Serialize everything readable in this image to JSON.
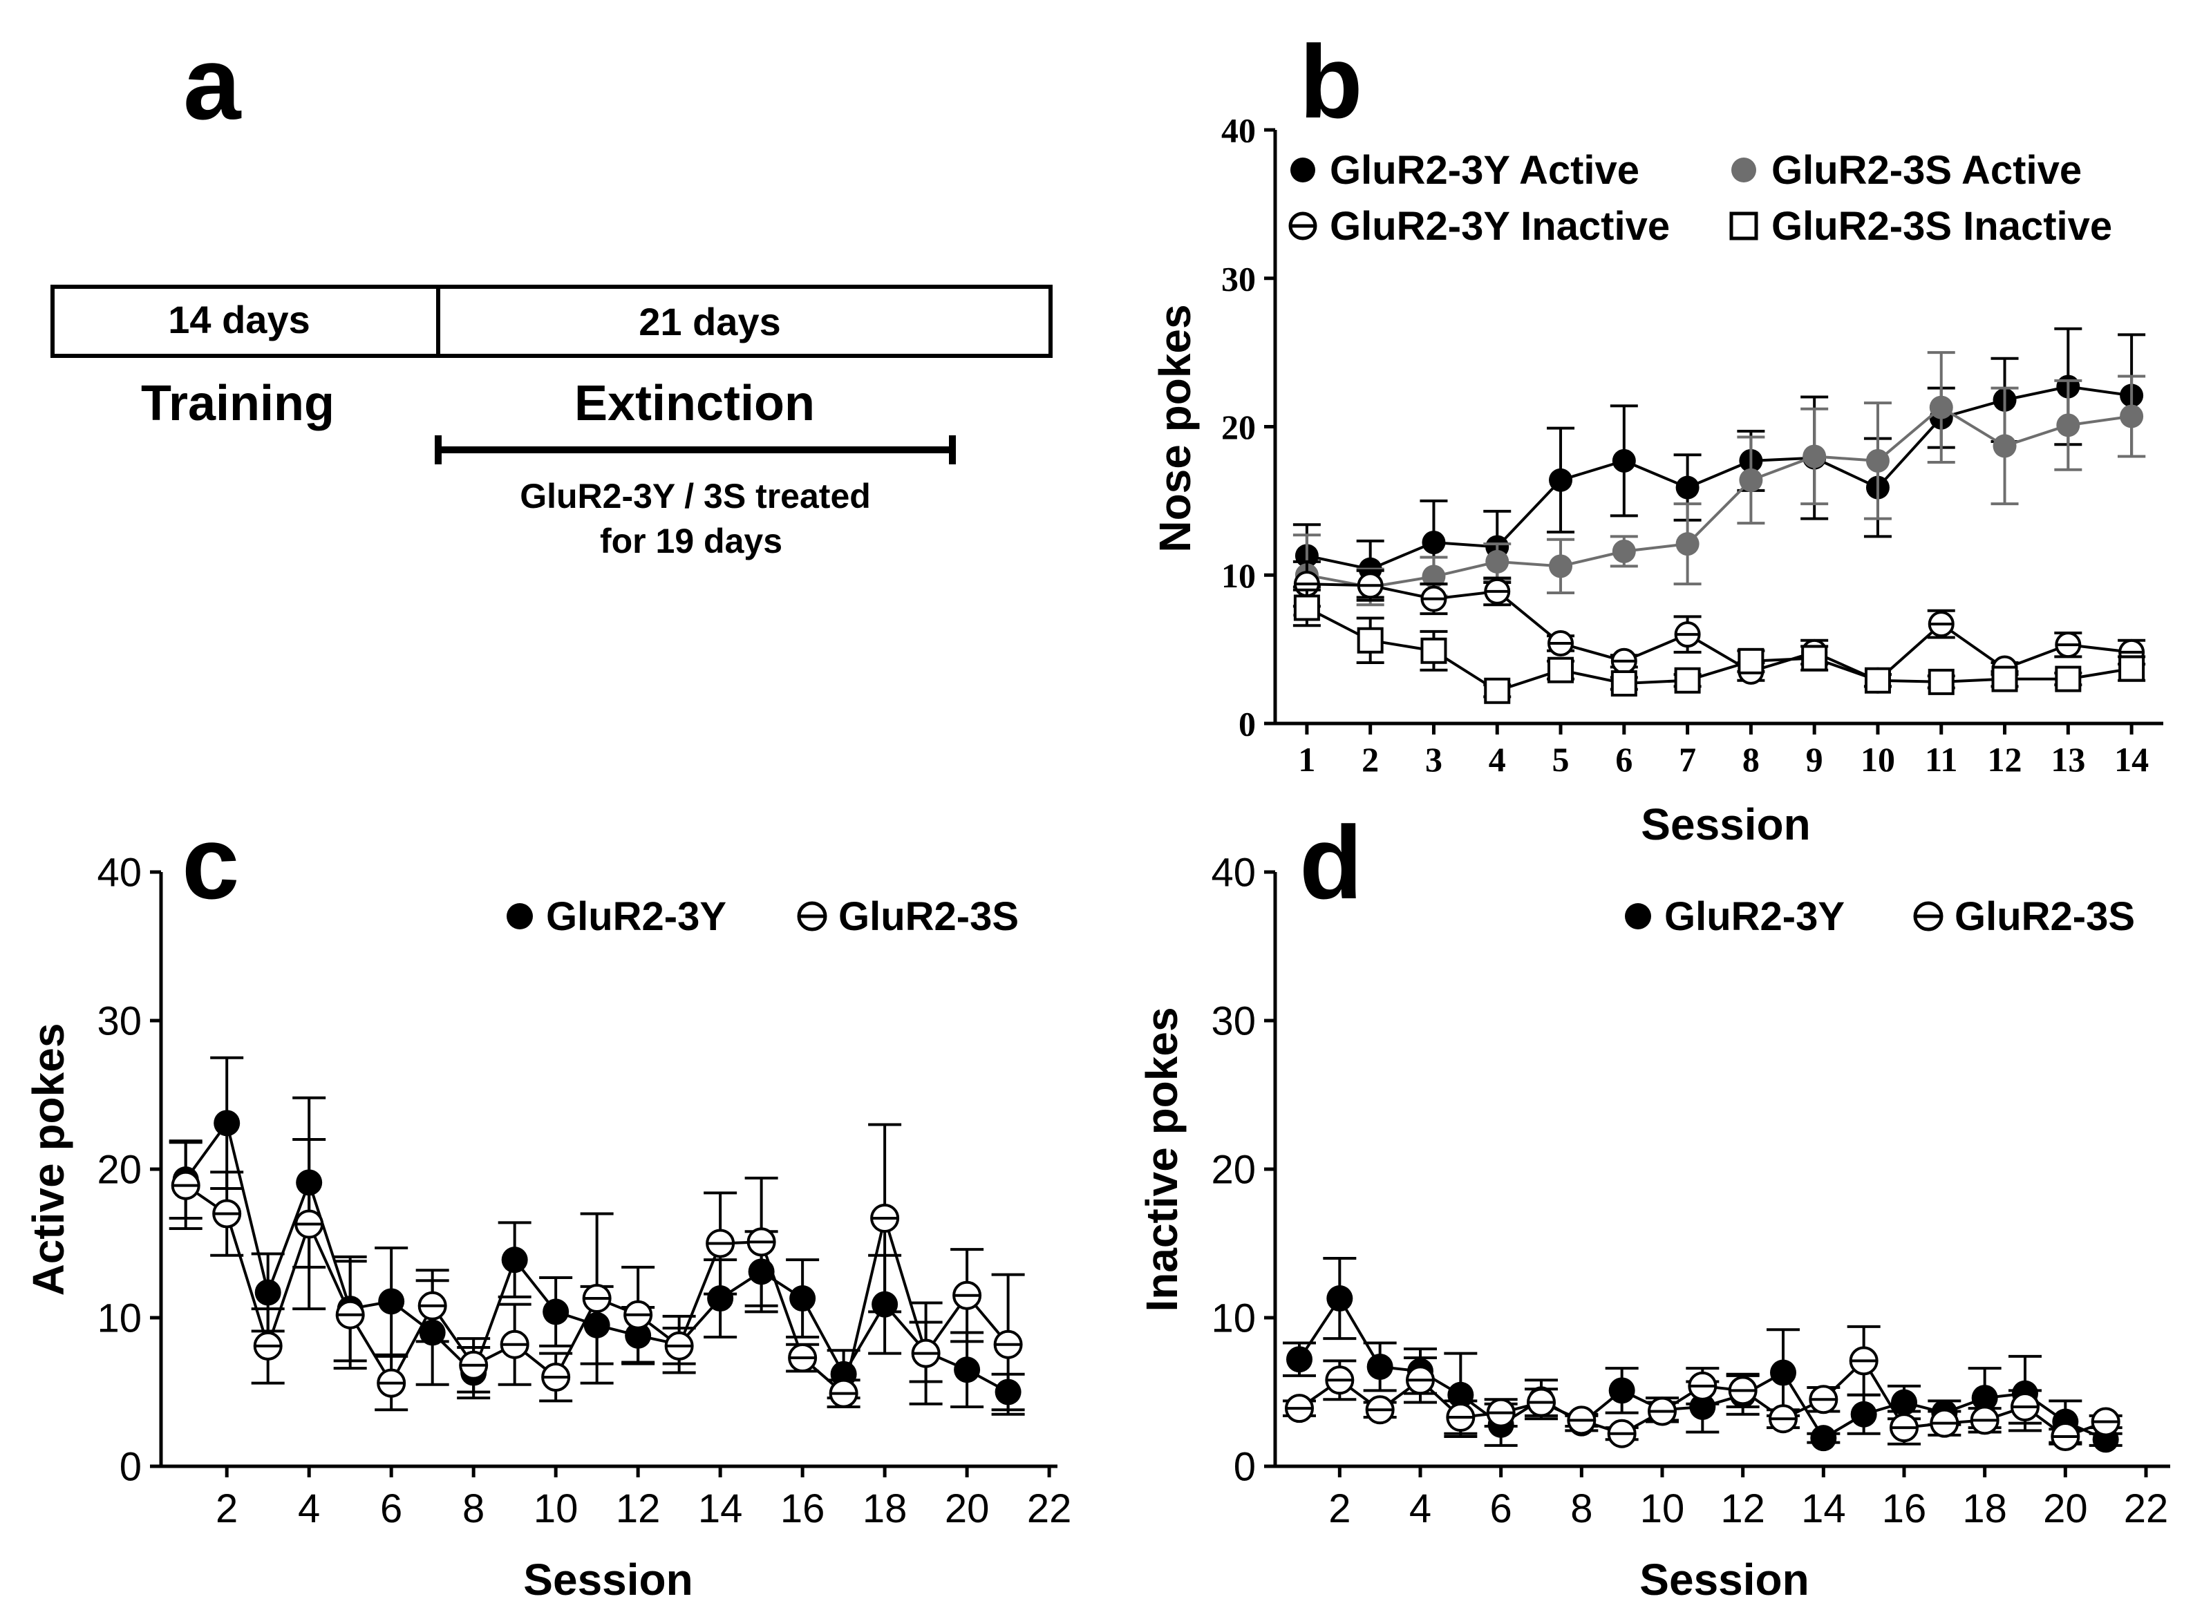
{
  "panels": {
    "a": {
      "letter": "a",
      "box1_label": "14 days",
      "box2_label": "21 days",
      "training_label": "Training",
      "extinction_label": "Extinction",
      "treatment_line1": "GluR2-3Y / 3S treated",
      "treatment_line2": "for 19 days"
    },
    "b": {
      "letter": "b"
    },
    "c": {
      "letter": "c"
    },
    "d": {
      "letter": "d"
    }
  },
  "chart_data": [
    {
      "id": "b",
      "type": "line",
      "title": "",
      "xlabel": "Session",
      "ylabel": "Nose pokes",
      "xlim": [
        0.5,
        14.5
      ],
      "ylim": [
        0,
        40
      ],
      "xticks": [
        1,
        2,
        3,
        4,
        5,
        6,
        7,
        8,
        9,
        10,
        11,
        12,
        13,
        14
      ],
      "yticks": [
        0,
        10,
        20,
        30,
        40
      ],
      "legend_placement": "top",
      "series": [
        {
          "name": "GluR2-3Y Active",
          "marker": "filled-circle",
          "color": "#000000",
          "x": [
            1,
            2,
            3,
            4,
            5,
            6,
            7,
            8,
            9,
            10,
            11,
            12,
            13,
            14
          ],
          "values": [
            11.3,
            10.4,
            12.2,
            11.9,
            16.4,
            17.7,
            15.9,
            17.7,
            17.9,
            15.9,
            20.6,
            21.8,
            22.7,
            22.1
          ],
          "errors": [
            2.1,
            1.9,
            2.8,
            2.4,
            3.5,
            3.7,
            2.2,
            2.0,
            4.1,
            3.3,
            2.0,
            2.8,
            3.9,
            4.1
          ]
        },
        {
          "name": "GluR2-3S Active",
          "marker": "filled-circle",
          "color": "#6e6e6e",
          "x": [
            1,
            2,
            3,
            4,
            5,
            6,
            7,
            8,
            9,
            10,
            11,
            12,
            13,
            14
          ],
          "values": [
            10.0,
            9.2,
            9.9,
            10.9,
            10.6,
            11.6,
            12.1,
            16.4,
            18.0,
            17.7,
            21.3,
            18.7,
            20.1,
            20.7
          ],
          "errors": [
            2.7,
            1.2,
            1.3,
            1.2,
            1.8,
            1.0,
            2.7,
            2.9,
            3.2,
            3.9,
            3.7,
            3.9,
            3.0,
            2.7
          ]
        },
        {
          "name": "GluR2-3Y Inactive",
          "marker": "open-circle-bar",
          "color": "#000000",
          "x": [
            1,
            2,
            3,
            4,
            5,
            6,
            7,
            8,
            9,
            10,
            11,
            12,
            13,
            14
          ],
          "values": [
            9.4,
            9.3,
            8.4,
            8.9,
            5.4,
            4.2,
            6.0,
            3.5,
            4.8,
            2.9,
            6.7,
            3.7,
            5.3,
            4.8
          ],
          "errors": [
            1.5,
            1.0,
            1.0,
            0.9,
            0.5,
            0.4,
            1.2,
            0.6,
            0.8,
            0.4,
            0.9,
            0.4,
            0.8,
            0.8
          ]
        },
        {
          "name": "GluR2-3S Inactive",
          "marker": "open-square",
          "color": "#000000",
          "x": [
            1,
            2,
            3,
            4,
            5,
            6,
            7,
            8,
            9,
            10,
            11,
            12,
            13,
            14
          ],
          "values": [
            7.8,
            5.6,
            4.9,
            2.2,
            3.6,
            2.7,
            2.9,
            4.2,
            4.4,
            2.9,
            2.8,
            3.0,
            3.0,
            3.7
          ],
          "errors": [
            1.2,
            1.5,
            1.3,
            0.4,
            0.6,
            0.4,
            0.4,
            0.7,
            0.8,
            0.4,
            0.4,
            0.5,
            0.4,
            0.8
          ]
        }
      ]
    },
    {
      "id": "c",
      "type": "line",
      "title": "",
      "xlabel": "Session",
      "ylabel": "Active pokes",
      "xlim": [
        0.4,
        22.2
      ],
      "ylim": [
        0,
        40
      ],
      "xticks": [
        2,
        4,
        6,
        8,
        10,
        12,
        14,
        16,
        18,
        20,
        22
      ],
      "yticks": [
        0,
        10,
        20,
        30,
        40
      ],
      "legend_placement": "top-right",
      "series": [
        {
          "name": "GluR2-3Y",
          "marker": "filled-circle",
          "color": "#000000",
          "x": [
            1,
            2,
            3,
            4,
            5,
            6,
            7,
            8,
            9,
            10,
            11,
            12,
            13,
            14,
            15,
            16,
            17,
            18,
            19,
            20,
            21
          ],
          "values": [
            19.3,
            23.1,
            11.7,
            19.1,
            10.6,
            11.1,
            9.0,
            6.3,
            13.9,
            10.4,
            9.5,
            8.8,
            8.2,
            11.3,
            13.1,
            11.3,
            6.2,
            10.9,
            7.7,
            6.5,
            5.0
          ],
          "errors": [
            2.6,
            4.4,
            2.6,
            5.7,
            3.5,
            3.6,
            3.5,
            1.7,
            2.5,
            2.3,
            2.6,
            1.9,
            1.9,
            2.6,
            2.7,
            2.6,
            1.6,
            3.3,
            2.0,
            2.5,
            1.2
          ]
        },
        {
          "name": "GluR2-3S",
          "marker": "open-circle-bar",
          "color": "#000000",
          "x": [
            1,
            2,
            3,
            4,
            5,
            6,
            7,
            8,
            9,
            10,
            11,
            12,
            13,
            14,
            15,
            16,
            17,
            18,
            19,
            20,
            21
          ],
          "values": [
            18.9,
            17.0,
            8.1,
            16.3,
            10.2,
            5.6,
            10.8,
            6.8,
            8.2,
            6.0,
            11.3,
            10.2,
            8.1,
            15.0,
            15.1,
            7.3,
            4.9,
            16.7,
            7.6,
            11.5,
            8.2
          ],
          "errors": [
            2.9,
            2.8,
            2.5,
            5.7,
            3.6,
            1.8,
            2.4,
            1.8,
            2.7,
            1.6,
            5.7,
            3.2,
            1.2,
            3.4,
            4.3,
            0.9,
            0.9,
            6.3,
            3.4,
            3.1,
            4.7
          ]
        }
      ]
    },
    {
      "id": "d",
      "type": "line",
      "title": "",
      "xlabel": "Session",
      "ylabel": "Inactive pokes",
      "xlim": [
        0.4,
        22.6
      ],
      "ylim": [
        0,
        40
      ],
      "xticks": [
        2,
        4,
        6,
        8,
        10,
        12,
        14,
        16,
        18,
        20,
        22
      ],
      "yticks": [
        0,
        10,
        20,
        30,
        40
      ],
      "legend_placement": "top-right",
      "series": [
        {
          "name": "GluR2-3Y",
          "marker": "filled-circle",
          "color": "#000000",
          "x": [
            1,
            2,
            3,
            4,
            5,
            6,
            7,
            8,
            9,
            10,
            11,
            12,
            13,
            14,
            15,
            16,
            17,
            18,
            19,
            20,
            21
          ],
          "values": [
            7.2,
            11.3,
            6.7,
            6.4,
            4.8,
            2.8,
            4.5,
            2.9,
            5.1,
            3.8,
            4.0,
            4.8,
            6.3,
            1.9,
            3.5,
            4.3,
            3.6,
            4.6,
            4.9,
            3.0,
            1.8
          ],
          "errors": [
            1.1,
            2.7,
            1.6,
            1.5,
            2.8,
            1.4,
            1.3,
            0.5,
            1.5,
            0.8,
            1.7,
            1.3,
            2.9,
            0.3,
            1.3,
            1.1,
            0.8,
            2.0,
            2.5,
            1.4,
            0.4
          ]
        },
        {
          "name": "GluR2-3S",
          "marker": "open-circle-bar",
          "color": "#000000",
          "x": [
            1,
            2,
            3,
            4,
            5,
            6,
            7,
            8,
            9,
            10,
            11,
            12,
            13,
            14,
            15,
            16,
            17,
            18,
            19,
            20,
            21
          ],
          "values": [
            3.9,
            5.8,
            3.8,
            5.8,
            3.3,
            3.6,
            4.3,
            3.1,
            2.2,
            3.7,
            5.4,
            5.1,
            3.2,
            4.5,
            7.1,
            2.6,
            2.9,
            3.1,
            4.0,
            2.0,
            3.0
          ],
          "errors": [
            0.5,
            1.3,
            0.5,
            1.5,
            1.1,
            0.9,
            0.9,
            0.4,
            0.4,
            0.6,
            1.2,
            1.1,
            0.6,
            0.8,
            2.3,
            1.1,
            0.8,
            0.8,
            1.1,
            0.5,
            0.4
          ]
        }
      ]
    }
  ]
}
